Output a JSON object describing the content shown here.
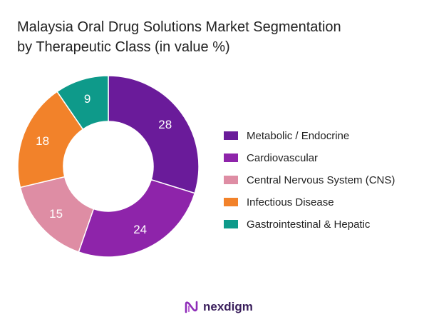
{
  "title_lines": [
    "Malaysia Oral Drug Solutions Market Segmentation",
    "by Therapeutic Class (in value %)"
  ],
  "chart_data": {
    "type": "pie",
    "variant": "donut",
    "title": "Malaysia Oral Drug Solutions Market Segmentation by Therapeutic Class (in value %)",
    "categories": [
      "Metabolic / Endocrine",
      "Cardiovascular",
      "Central Nervous System (CNS)",
      "Infectious Disease",
      "Gastrointestinal & Hepatic"
    ],
    "values": [
      28,
      24,
      15,
      18,
      9
    ],
    "colors": [
      "#6a1b9a",
      "#8e24aa",
      "#de8da4",
      "#f2822a",
      "#0e9a8a"
    ],
    "labels": [
      "28",
      "24",
      "15",
      "18",
      "9"
    ],
    "legend_position": "right"
  },
  "brand": {
    "name": "nexdigm",
    "logo_icon": "nexdigm-logo-icon",
    "color": "#3a1f5c"
  }
}
